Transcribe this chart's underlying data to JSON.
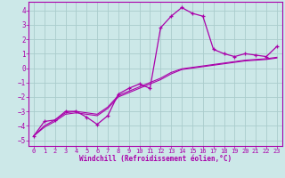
{
  "xlabel": "Windchill (Refroidissement éolien,°C)",
  "ylabel": "",
  "xlim": [
    -0.5,
    23.5
  ],
  "ylim": [
    -5.4,
    4.6
  ],
  "xticks": [
    0,
    1,
    2,
    3,
    4,
    5,
    6,
    7,
    8,
    9,
    10,
    11,
    12,
    13,
    14,
    15,
    16,
    17,
    18,
    19,
    20,
    21,
    22,
    23
  ],
  "yticks": [
    -5,
    -4,
    -3,
    -2,
    -1,
    0,
    1,
    2,
    3,
    4
  ],
  "bg_color": "#cce8e8",
  "grid_color": "#aacccc",
  "line_color": "#aa00aa",
  "line1_x": [
    0,
    1,
    2,
    3,
    4,
    5,
    6,
    7,
    8,
    9,
    10,
    11,
    12,
    13,
    14,
    15,
    16,
    17,
    18,
    19,
    20,
    21,
    22,
    23
  ],
  "line1_y": [
    -4.7,
    -3.7,
    -3.6,
    -3.0,
    -3.0,
    -3.4,
    -3.9,
    -3.3,
    -1.8,
    -1.4,
    -1.1,
    -1.4,
    2.8,
    3.6,
    4.2,
    3.8,
    3.6,
    1.3,
    1.0,
    0.8,
    1.0,
    0.9,
    0.8,
    1.5
  ],
  "line2_x": [
    0,
    1,
    2,
    3,
    4,
    5,
    6,
    7,
    8,
    9,
    10,
    11,
    12,
    13,
    14,
    15,
    16,
    17,
    18,
    19,
    20,
    21,
    22,
    23
  ],
  "line2_y": [
    -4.7,
    -4.0,
    -3.6,
    -3.1,
    -3.0,
    -3.1,
    -3.2,
    -2.7,
    -1.9,
    -1.6,
    -1.3,
    -1.0,
    -0.7,
    -0.3,
    -0.05,
    0.05,
    0.15,
    0.25,
    0.35,
    0.45,
    0.55,
    0.6,
    0.65,
    0.75
  ],
  "line3_x": [
    0,
    1,
    2,
    3,
    4,
    5,
    6,
    7,
    8,
    9,
    10,
    11,
    12,
    13,
    14,
    15,
    16,
    17,
    18,
    19,
    20,
    21,
    22,
    23
  ],
  "line3_y": [
    -4.7,
    -4.1,
    -3.7,
    -3.2,
    -3.1,
    -3.2,
    -3.3,
    -2.8,
    -2.0,
    -1.7,
    -1.4,
    -1.1,
    -0.8,
    -0.4,
    -0.1,
    0.0,
    0.1,
    0.2,
    0.3,
    0.4,
    0.5,
    0.55,
    0.6,
    0.7
  ]
}
